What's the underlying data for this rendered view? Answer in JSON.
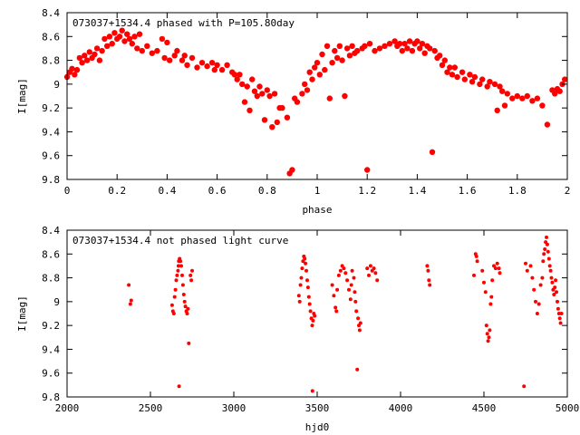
{
  "chart_data": [
    {
      "type": "scatter",
      "title": "073037+1534.4 phased with P=105.80day",
      "xlabel": "phase",
      "ylabel": "I[mag]",
      "xlim": [
        0,
        2
      ],
      "ylim": [
        9.8,
        8.4
      ],
      "y_inverted": true,
      "grid": false,
      "marker_color": "#ff0000",
      "marker": "filled-circle-large",
      "x_ticks": [
        "0",
        "0.2",
        "0.4",
        "0.6",
        "0.8",
        "1",
        "1.2",
        "1.4",
        "1.6",
        "1.8",
        "2"
      ],
      "y_ticks": [
        "8.4",
        "8.6",
        "8.8",
        "9",
        "9.2",
        "9.4",
        "9.6",
        "9.8"
      ],
      "points": [
        [
          0.0,
          8.94
        ],
        [
          0.01,
          8.9
        ],
        [
          0.02,
          8.87
        ],
        [
          0.03,
          8.92
        ],
        [
          0.04,
          8.88
        ],
        [
          0.05,
          8.78
        ],
        [
          0.06,
          8.82
        ],
        [
          0.07,
          8.76
        ],
        [
          0.08,
          8.8
        ],
        [
          0.09,
          8.73
        ],
        [
          0.1,
          8.78
        ],
        [
          0.11,
          8.75
        ],
        [
          0.12,
          8.7
        ],
        [
          0.13,
          8.8
        ],
        [
          0.14,
          8.72
        ],
        [
          0.15,
          8.62
        ],
        [
          0.16,
          8.68
        ],
        [
          0.17,
          8.6
        ],
        [
          0.18,
          8.66
        ],
        [
          0.19,
          8.57
        ],
        [
          0.2,
          8.62
        ],
        [
          0.21,
          8.6
        ],
        [
          0.22,
          8.55
        ],
        [
          0.23,
          8.64
        ],
        [
          0.24,
          8.58
        ],
        [
          0.25,
          8.62
        ],
        [
          0.26,
          8.66
        ],
        [
          0.27,
          8.6
        ],
        [
          0.28,
          8.7
        ],
        [
          0.29,
          8.58
        ],
        [
          0.3,
          8.72
        ],
        [
          0.32,
          8.68
        ],
        [
          0.34,
          8.74
        ],
        [
          0.36,
          8.72
        ],
        [
          0.38,
          8.62
        ],
        [
          0.39,
          8.78
        ],
        [
          0.4,
          8.65
        ],
        [
          0.41,
          8.8
        ],
        [
          0.43,
          8.76
        ],
        [
          0.44,
          8.72
        ],
        [
          0.46,
          8.8
        ],
        [
          0.47,
          8.76
        ],
        [
          0.48,
          8.84
        ],
        [
          0.5,
          8.78
        ],
        [
          0.52,
          8.86
        ],
        [
          0.54,
          8.82
        ],
        [
          0.56,
          8.85
        ],
        [
          0.58,
          8.82
        ],
        [
          0.59,
          8.88
        ],
        [
          0.6,
          8.84
        ],
        [
          0.62,
          8.88
        ],
        [
          0.64,
          8.84
        ],
        [
          0.66,
          8.9
        ],
        [
          0.67,
          8.92
        ],
        [
          0.68,
          8.96
        ],
        [
          0.69,
          8.92
        ],
        [
          0.7,
          9.0
        ],
        [
          0.71,
          9.15
        ],
        [
          0.72,
          9.02
        ],
        [
          0.73,
          9.22
        ],
        [
          0.74,
          8.96
        ],
        [
          0.75,
          9.06
        ],
        [
          0.76,
          9.1
        ],
        [
          0.77,
          9.02
        ],
        [
          0.78,
          9.08
        ],
        [
          0.79,
          9.3
        ],
        [
          0.8,
          9.05
        ],
        [
          0.81,
          9.1
        ],
        [
          0.82,
          9.36
        ],
        [
          0.83,
          9.08
        ],
        [
          0.84,
          9.32
        ],
        [
          0.85,
          9.2
        ],
        [
          0.86,
          9.2
        ],
        [
          0.88,
          9.28
        ],
        [
          0.89,
          9.75
        ],
        [
          0.9,
          9.72
        ],
        [
          0.91,
          9.12
        ],
        [
          0.92,
          9.15
        ],
        [
          0.94,
          9.08
        ],
        [
          0.95,
          9.0
        ],
        [
          0.96,
          9.05
        ],
        [
          0.97,
          8.9
        ],
        [
          0.98,
          8.96
        ],
        [
          0.99,
          8.86
        ],
        [
          1.0,
          8.82
        ],
        [
          1.01,
          8.92
        ],
        [
          1.02,
          8.75
        ],
        [
          1.03,
          8.88
        ],
        [
          1.04,
          8.68
        ],
        [
          1.05,
          9.12
        ],
        [
          1.06,
          8.82
        ],
        [
          1.07,
          8.72
        ],
        [
          1.08,
          8.78
        ],
        [
          1.09,
          8.68
        ],
        [
          1.1,
          8.8
        ],
        [
          1.11,
          9.1
        ],
        [
          1.12,
          8.7
        ],
        [
          1.13,
          8.76
        ],
        [
          1.14,
          8.68
        ],
        [
          1.15,
          8.74
        ],
        [
          1.16,
          8.72
        ],
        [
          1.18,
          8.7
        ],
        [
          1.19,
          8.68
        ],
        [
          1.2,
          9.72
        ],
        [
          1.21,
          8.66
        ],
        [
          1.23,
          8.72
        ],
        [
          1.25,
          8.7
        ],
        [
          1.27,
          8.68
        ],
        [
          1.29,
          8.66
        ],
        [
          1.31,
          8.64
        ],
        [
          1.32,
          8.68
        ],
        [
          1.33,
          8.66
        ],
        [
          1.34,
          8.72
        ],
        [
          1.35,
          8.66
        ],
        [
          1.36,
          8.7
        ],
        [
          1.37,
          8.64
        ],
        [
          1.38,
          8.72
        ],
        [
          1.39,
          8.66
        ],
        [
          1.4,
          8.64
        ],
        [
          1.41,
          8.7
        ],
        [
          1.42,
          8.66
        ],
        [
          1.43,
          8.74
        ],
        [
          1.44,
          8.68
        ],
        [
          1.45,
          8.7
        ],
        [
          1.46,
          9.57
        ],
        [
          1.47,
          8.72
        ],
        [
          1.48,
          8.78
        ],
        [
          1.49,
          8.76
        ],
        [
          1.5,
          8.84
        ],
        [
          1.51,
          8.8
        ],
        [
          1.52,
          8.9
        ],
        [
          1.53,
          8.86
        ],
        [
          1.54,
          8.92
        ],
        [
          1.55,
          8.86
        ],
        [
          1.56,
          8.94
        ],
        [
          1.58,
          8.9
        ],
        [
          1.59,
          8.96
        ],
        [
          1.61,
          8.92
        ],
        [
          1.62,
          8.98
        ],
        [
          1.63,
          8.94
        ],
        [
          1.65,
          9.0
        ],
        [
          1.66,
          8.96
        ],
        [
          1.68,
          9.02
        ],
        [
          1.69,
          8.98
        ],
        [
          1.71,
          9.0
        ],
        [
          1.72,
          9.22
        ],
        [
          1.73,
          9.02
        ],
        [
          1.74,
          9.06
        ],
        [
          1.75,
          9.18
        ],
        [
          1.76,
          9.08
        ],
        [
          1.78,
          9.12
        ],
        [
          1.8,
          9.1
        ],
        [
          1.82,
          9.12
        ],
        [
          1.84,
          9.1
        ],
        [
          1.86,
          9.14
        ],
        [
          1.88,
          9.12
        ],
        [
          1.9,
          9.18
        ],
        [
          1.92,
          9.34
        ],
        [
          1.94,
          9.05
        ],
        [
          1.95,
          9.08
        ],
        [
          1.96,
          9.04
        ],
        [
          1.97,
          9.06
        ],
        [
          1.98,
          9.0
        ],
        [
          1.99,
          8.96
        ]
      ]
    },
    {
      "type": "scatter",
      "title": "073037+1534.4 not phased light curve",
      "xlabel": "hjd0",
      "ylabel": "I[mag]",
      "xlim": [
        2000,
        5000
      ],
      "ylim": [
        9.8,
        8.4
      ],
      "y_inverted": true,
      "grid": false,
      "marker_color": "#ff0000",
      "marker": "filled-circle-small",
      "x_ticks": [
        "2000",
        "2500",
        "3000",
        "3500",
        "4000",
        "4500",
        "5000"
      ],
      "y_ticks": [
        "8.4",
        "8.6",
        "8.8",
        "9",
        "9.2",
        "9.4",
        "9.6",
        "9.8"
      ],
      "points": [
        [
          2370,
          8.86
        ],
        [
          2380,
          9.02
        ],
        [
          2385,
          8.99
        ],
        [
          2630,
          9.03
        ],
        [
          2635,
          9.08
        ],
        [
          2640,
          9.1
        ],
        [
          2645,
          8.96
        ],
        [
          2650,
          8.9
        ],
        [
          2655,
          8.82
        ],
        [
          2660,
          8.78
        ],
        [
          2665,
          8.74
        ],
        [
          2668,
          8.7
        ],
        [
          2670,
          8.66
        ],
        [
          2672,
          9.71
        ],
        [
          2675,
          8.64
        ],
        [
          2680,
          8.66
        ],
        [
          2685,
          8.7
        ],
        [
          2690,
          8.78
        ],
        [
          2695,
          8.86
        ],
        [
          2700,
          8.94
        ],
        [
          2705,
          9.0
        ],
        [
          2710,
          9.04
        ],
        [
          2715,
          9.08
        ],
        [
          2720,
          9.1
        ],
        [
          2725,
          9.06
        ],
        [
          2730,
          9.35
        ],
        [
          2740,
          8.78
        ],
        [
          2745,
          8.82
        ],
        [
          2750,
          8.74
        ],
        [
          3390,
          8.95
        ],
        [
          3395,
          9.0
        ],
        [
          3400,
          8.86
        ],
        [
          3405,
          8.8
        ],
        [
          3410,
          8.72
        ],
        [
          3415,
          8.66
        ],
        [
          3420,
          8.62
        ],
        [
          3425,
          8.64
        ],
        [
          3430,
          8.68
        ],
        [
          3435,
          8.74
        ],
        [
          3440,
          8.82
        ],
        [
          3445,
          8.88
        ],
        [
          3450,
          8.96
        ],
        [
          3455,
          9.02
        ],
        [
          3460,
          9.08
        ],
        [
          3465,
          9.14
        ],
        [
          3470,
          9.2
        ],
        [
          3472,
          9.75
        ],
        [
          3475,
          9.16
        ],
        [
          3480,
          9.1
        ],
        [
          3485,
          9.12
        ],
        [
          3590,
          8.86
        ],
        [
          3600,
          8.95
        ],
        [
          3610,
          9.05
        ],
        [
          3615,
          9.08
        ],
        [
          3620,
          8.9
        ],
        [
          3630,
          8.78
        ],
        [
          3640,
          8.74
        ],
        [
          3650,
          8.7
        ],
        [
          3660,
          8.72
        ],
        [
          3670,
          8.76
        ],
        [
          3680,
          8.82
        ],
        [
          3690,
          8.9
        ],
        [
          3700,
          8.98
        ],
        [
          3705,
          8.86
        ],
        [
          3710,
          8.74
        ],
        [
          3720,
          8.8
        ],
        [
          3725,
          8.92
        ],
        [
          3730,
          9.0
        ],
        [
          3735,
          9.08
        ],
        [
          3740,
          9.57
        ],
        [
          3745,
          9.14
        ],
        [
          3750,
          9.2
        ],
        [
          3755,
          9.24
        ],
        [
          3760,
          9.18
        ],
        [
          3800,
          8.72
        ],
        [
          3810,
          8.78
        ],
        [
          3820,
          8.7
        ],
        [
          3830,
          8.74
        ],
        [
          3840,
          8.72
        ],
        [
          3850,
          8.76
        ],
        [
          3860,
          8.82
        ],
        [
          4160,
          8.7
        ],
        [
          4165,
          8.74
        ],
        [
          4170,
          8.82
        ],
        [
          4175,
          8.86
        ],
        [
          4440,
          8.78
        ],
        [
          4450,
          8.6
        ],
        [
          4455,
          8.62
        ],
        [
          4460,
          8.66
        ],
        [
          4490,
          8.74
        ],
        [
          4500,
          8.84
        ],
        [
          4510,
          8.92
        ],
        [
          4515,
          9.2
        ],
        [
          4520,
          9.27
        ],
        [
          4525,
          9.33
        ],
        [
          4530,
          9.3
        ],
        [
          4535,
          9.24
        ],
        [
          4540,
          9.02
        ],
        [
          4545,
          8.96
        ],
        [
          4550,
          8.82
        ],
        [
          4560,
          8.7
        ],
        [
          4570,
          8.72
        ],
        [
          4580,
          8.68
        ],
        [
          4590,
          8.72
        ],
        [
          4595,
          8.76
        ],
        [
          4740,
          9.71
        ],
        [
          4750,
          8.68
        ],
        [
          4760,
          8.74
        ],
        [
          4780,
          8.7
        ],
        [
          4790,
          8.8
        ],
        [
          4800,
          8.9
        ],
        [
          4810,
          9.0
        ],
        [
          4820,
          9.1
        ],
        [
          4830,
          9.02
        ],
        [
          4840,
          8.86
        ],
        [
          4850,
          8.8
        ],
        [
          4855,
          8.66
        ],
        [
          4860,
          8.6
        ],
        [
          4865,
          8.56
        ],
        [
          4870,
          8.5
        ],
        [
          4875,
          8.46
        ],
        [
          4880,
          8.52
        ],
        [
          4885,
          8.58
        ],
        [
          4890,
          8.64
        ],
        [
          4895,
          8.7
        ],
        [
          4900,
          8.74
        ],
        [
          4905,
          8.8
        ],
        [
          4910,
          8.84
        ],
        [
          4915,
          8.9
        ],
        [
          4920,
          8.94
        ],
        [
          4925,
          8.88
        ],
        [
          4930,
          8.82
        ],
        [
          4935,
          8.92
        ],
        [
          4940,
          9.0
        ],
        [
          4945,
          9.06
        ],
        [
          4950,
          9.1
        ],
        [
          4955,
          9.14
        ],
        [
          4960,
          9.18
        ],
        [
          4965,
          9.1
        ]
      ]
    }
  ]
}
